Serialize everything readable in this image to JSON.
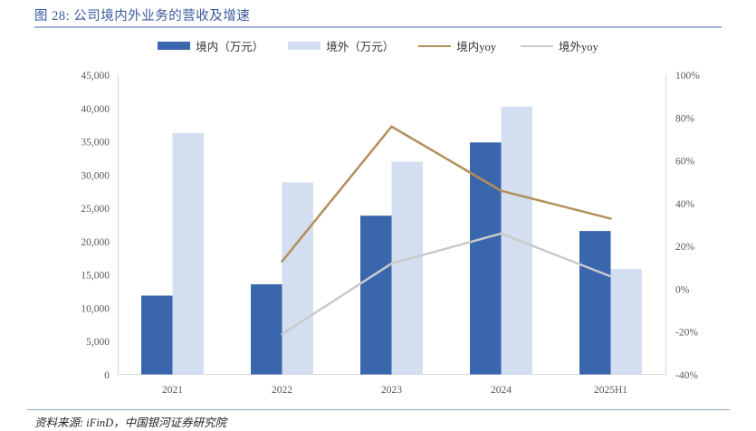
{
  "header": {
    "title": "图 28: 公司境内外业务的营收及增速"
  },
  "source": {
    "label": "资料来源: iFinD，中国银河证券研究院"
  },
  "colors": {
    "title": "#3A5A9C",
    "title_rule": "#9FB2D0",
    "bottom_rule": "#8FA3C2",
    "axis_text": "#595959",
    "plot_border": "#D9D9D9",
    "bar_domestic": "#3A66AE",
    "bar_overseas": "#D3DEF0",
    "line_domestic_yoy": "#B28F5B",
    "line_overseas_yoy": "#CACACA"
  },
  "chart_data": {
    "type": "bar",
    "subtype": "grouped-bars-with-lines",
    "title": "公司境内外业务的营收及增速",
    "categories": [
      "2021",
      "2022",
      "2023",
      "2024",
      "2025H1"
    ],
    "series": [
      {
        "name": "境内（万元）",
        "type": "bar",
        "axis": "left",
        "color": "#3A66AE",
        "values": [
          11900,
          13600,
          23900,
          34900,
          21600
        ]
      },
      {
        "name": "境外（万元）",
        "type": "bar",
        "axis": "left",
        "color": "#D3DEF0",
        "values": [
          36300,
          28900,
          32000,
          40300,
          15900
        ]
      },
      {
        "name": "境内yoy",
        "type": "line",
        "axis": "right",
        "color": "#B28F5B",
        "values": [
          null,
          13,
          76,
          46,
          33
        ]
      },
      {
        "name": "境外yoy",
        "type": "line",
        "axis": "right",
        "color": "#CACACA",
        "values": [
          null,
          -21,
          12,
          26,
          6
        ]
      }
    ],
    "left_axis": {
      "min": 0,
      "max": 45000,
      "step": 5000,
      "ticks": [
        0,
        5000,
        10000,
        15000,
        20000,
        25000,
        30000,
        35000,
        40000,
        45000
      ],
      "tick_labels": [
        "0",
        "5,000",
        "10,000",
        "15,000",
        "20,000",
        "25,000",
        "30,000",
        "35,000",
        "40,000",
        "45,000"
      ]
    },
    "right_axis": {
      "min": -40,
      "max": 100,
      "step": 20,
      "ticks": [
        -40,
        -20,
        0,
        20,
        40,
        60,
        80,
        100
      ],
      "tick_labels": [
        "-40%",
        "-20%",
        "0%",
        "20%",
        "40%",
        "60%",
        "80%",
        "100%"
      ]
    },
    "legend_position": "top",
    "grid": false
  }
}
